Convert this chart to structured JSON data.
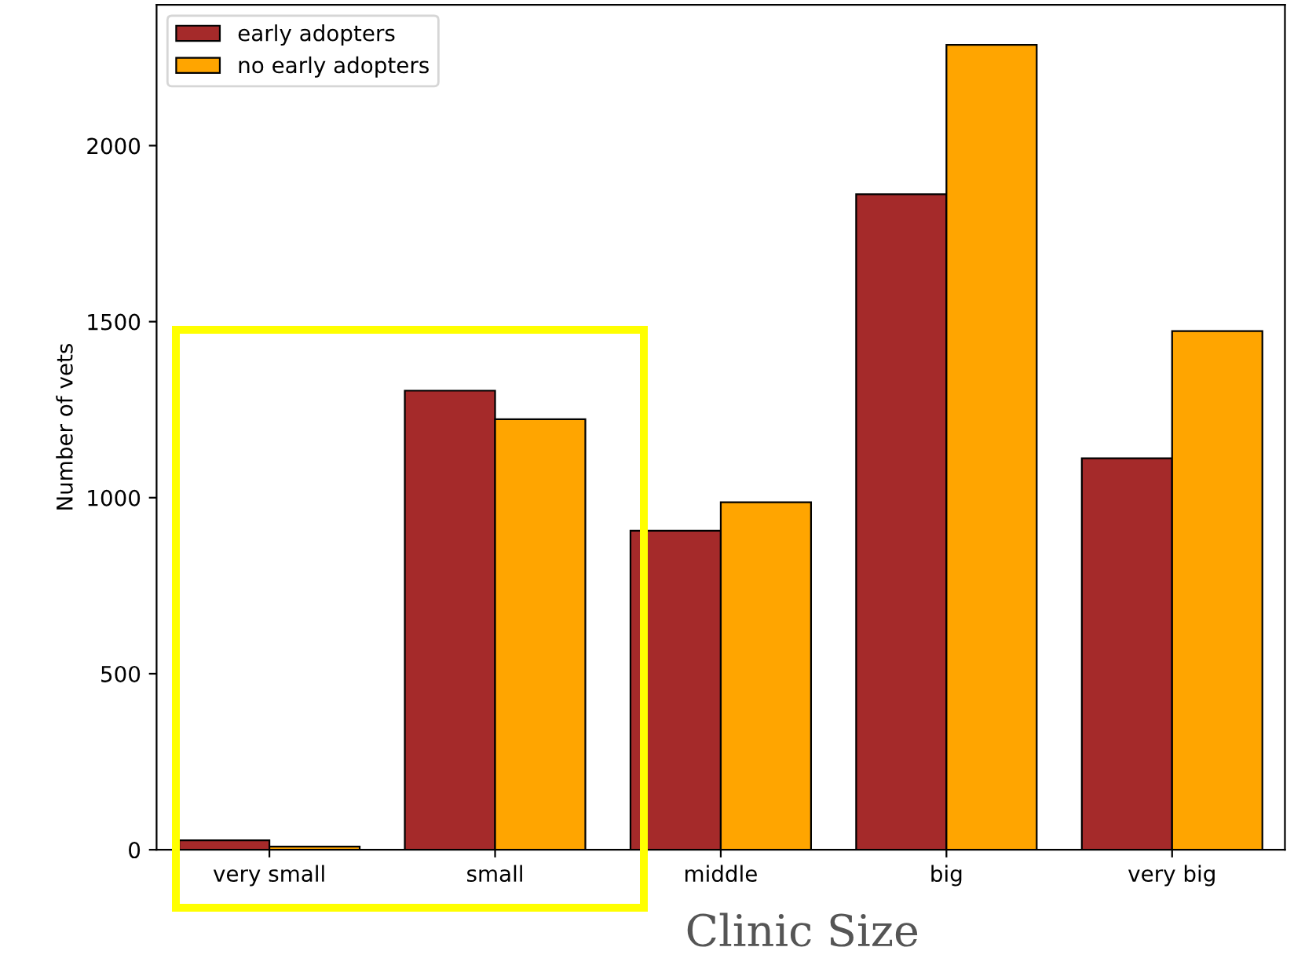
{
  "chart_data": {
    "type": "bar",
    "xlabel": "Clinic Size",
    "ylabel": "Number of vets",
    "categories": [
      "very small",
      "small",
      "middle",
      "big",
      "very big"
    ],
    "series": [
      {
        "name": "early adopters",
        "color": "#a52a2a",
        "values": [
          27,
          1304,
          906,
          1862,
          1112
        ]
      },
      {
        "name": "no early adopters",
        "color": "#ffa500",
        "values": [
          9,
          1223,
          987,
          2286,
          1473
        ]
      }
    ],
    "ylim": [
      0,
      2400
    ],
    "yticks": [
      0,
      500,
      1000,
      1500,
      2000
    ],
    "grid": false,
    "legend": "top left"
  }
}
